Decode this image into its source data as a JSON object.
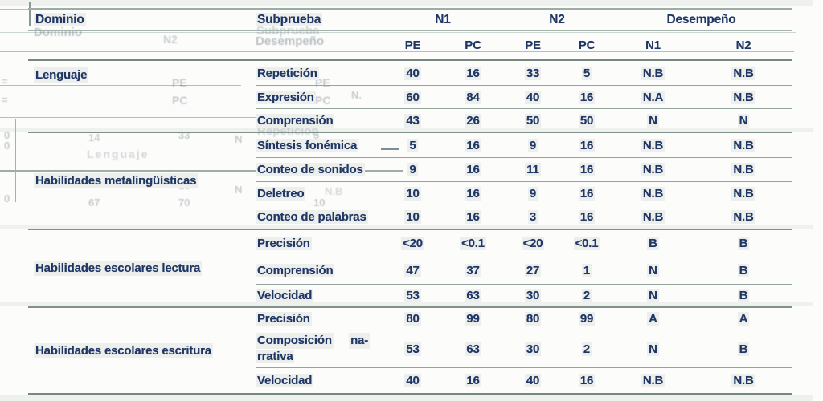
{
  "colors": {
    "ink": "#203765",
    "rule_thin": "#93a59d",
    "rule_thick": "#76887f"
  },
  "table": {
    "headers": {
      "dominio": "Dominio",
      "subprueba": "Subprueba",
      "n1": "N1",
      "n2": "N2",
      "desempeno": "Desempeño",
      "sub": [
        "PE",
        "PC",
        "PE",
        "PC",
        "N1",
        "N2"
      ]
    },
    "sections": [
      {
        "domain": "Lenguaje",
        "rows": [
          {
            "label": "Repetición",
            "pe1": "40",
            "pc1": "16",
            "pe2": "33",
            "pc2": "5",
            "d1": "N.B",
            "d2": "N.B"
          },
          {
            "label": "Expresión",
            "pe1": "60",
            "pc1": "84",
            "pe2": "40",
            "pc2": "16",
            "d1": "N.A",
            "d2": "N.B"
          },
          {
            "label": "Comprensión",
            "pe1": "43",
            "pc1": "26",
            "pe2": "50",
            "pc2": "50",
            "d1": "N",
            "d2": "N"
          }
        ]
      },
      {
        "domain": "Habilidades metalingüísticas",
        "rows": [
          {
            "label": "Síntesis fonémica",
            "pe1": "5",
            "pc1": "16",
            "pe2": "9",
            "pc2": "16",
            "d1": "N.B",
            "d2": "N.B"
          },
          {
            "label": "Conteo de sonidos",
            "pe1": "9",
            "pc1": "16",
            "pe2": "11",
            "pc2": "16",
            "d1": "N.B",
            "d2": "N.B"
          },
          {
            "label": "Deletreo",
            "pe1": "10",
            "pc1": "16",
            "pe2": "9",
            "pc2": "16",
            "d1": "N.B",
            "d2": "N.B"
          },
          {
            "label": "Conteo de palabras",
            "pe1": "10",
            "pc1": "16",
            "pe2": "3",
            "pc2": "16",
            "d1": "N.B",
            "d2": "N.B"
          }
        ]
      },
      {
        "domain": "Habilidades escolares lectura",
        "rows": [
          {
            "label": "Precisión",
            "pe1": "<20",
            "pc1": "<0.1",
            "pe2": "<20",
            "pc2": "<0.1",
            "d1": "B",
            "d2": "B"
          },
          {
            "label": "Comprensión",
            "pe1": "47",
            "pc1": "37",
            "pe2": "27",
            "pc2": "1",
            "d1": "N",
            "d2": "B"
          },
          {
            "label": "Velocidad",
            "pe1": "53",
            "pc1": "63",
            "pe2": "30",
            "pc2": "2",
            "d1": "N",
            "d2": "B"
          }
        ]
      },
      {
        "domain": "Habilidades escolares escritura",
        "rows": [
          {
            "label": "Precisión",
            "pe1": "80",
            "pc1": "99",
            "pe2": "80",
            "pc2": "99",
            "d1": "A",
            "d2": "A"
          },
          {
            "label": "Composición",
            "label_cont": "na-",
            "label2": "rrativa",
            "pe1": "53",
            "pc1": "63",
            "pe2": "30",
            "pc2": "2",
            "d1": "N",
            "d2": "B"
          },
          {
            "label": "Velocidad",
            "pe1": "40",
            "pc1": "16",
            "pe2": "40",
            "pc2": "16",
            "d1": "N.B",
            "d2": "N.B"
          }
        ]
      }
    ]
  },
  "scan_artifacts": {
    "g_dominio": "Dominio",
    "g_n2": "N2",
    "g_subprueba": "Subprueba",
    "g_desempeno": "Desempeño",
    "g_pe1": "PE",
    "g_pc1": "PC",
    "g_pe2": "PE",
    "g_pc2": "PC",
    "g_eq1": "=",
    "g_eq2": "=",
    "g_z1": "0",
    "g_z2": "0",
    "g_14": "14",
    "g_33": "33",
    "g_5": "5",
    "g_lenguaje": "Lenguaje",
    "g_n_a": "N",
    "g_16": "16",
    "g_z3": "0",
    "g_67": "67",
    "g_70": "70",
    "g_10": "10",
    "g_n_b": "N",
    "g_repeticion": "Repetición",
    "g_nd": "N.",
    "g_nb": "N.B"
  }
}
